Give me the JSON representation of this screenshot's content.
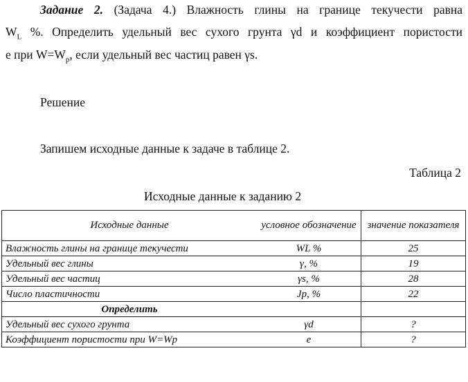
{
  "task": {
    "label": "Задание 2.",
    "line1": "(Задача 4.) Влажность глины на границе текучести равна",
    "line2_prefix": "W",
    "line2_sub": "L",
    "line2": " %. Определить удельный вес сухого грунта γd и коэффициент пористости",
    "line3_a": "е  при W=W",
    "line3_sub": "p",
    "line3_b": ", если удельный вес частиц равен γs."
  },
  "solution": "Решение",
  "intro": "Запишем исходные данные к задаче в таблице 2.",
  "table_number": "Таблица 2",
  "table_title": "Исходные данные к заданию 2",
  "table": {
    "headers": [
      "Исходные данные",
      "условное обозначение",
      "значение показателя"
    ],
    "rows": [
      [
        "Влажность глины на границе текучести",
        "WL %",
        "25"
      ],
      [
        "Удельный вес глины",
        "γ, %",
        "19"
      ],
      [
        "Удельный вес частиц",
        "γs, %",
        "28"
      ],
      [
        "Число пластичности",
        "Jp, %",
        "22"
      ]
    ],
    "section": "Определить",
    "rows2": [
      [
        "Удельный вес сухого грунта",
        "γd",
        "?"
      ],
      [
        "Коэффициент пористости при W=Wp",
        "e",
        "?"
      ]
    ]
  }
}
